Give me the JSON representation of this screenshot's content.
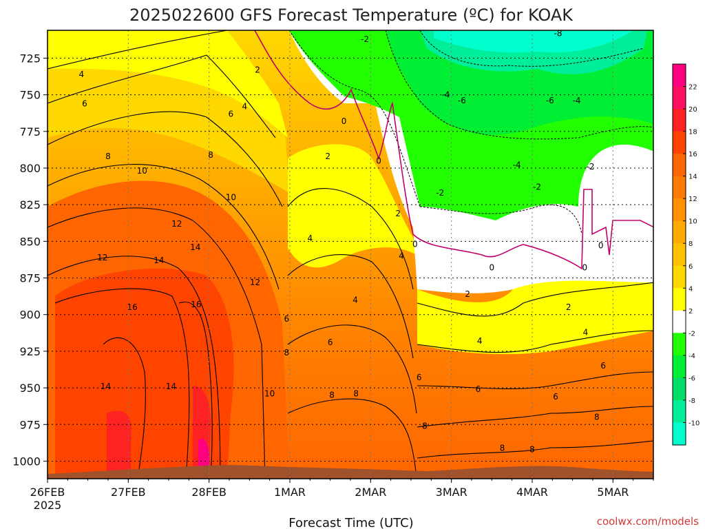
{
  "chart_data": {
    "type": "heatmap",
    "title": "2025022600 GFS Forecast Temperature (ºC) for KOAK",
    "xlabel": "Forecast Time (UTC)",
    "credit": "coolwx.com/models",
    "y_axis": {
      "label": "",
      "reversed": true,
      "ticks": [
        725,
        750,
        775,
        800,
        825,
        850,
        875,
        900,
        925,
        950,
        975,
        1000
      ],
      "tick_labels": [
        "725",
        "750",
        "775",
        "800",
        "825",
        "850",
        "875",
        "900",
        "925",
        "950",
        "975",
        "1000"
      ],
      "range": [
        706,
        1012
      ]
    },
    "x_axis": {
      "ticks": [
        "26FEB",
        "27FEB",
        "28FEB",
        "1MAR",
        "2MAR",
        "3MAR",
        "4MAR",
        "5MAR"
      ],
      "year_label": "2025",
      "range_days": [
        0,
        7.5
      ]
    },
    "grid": true,
    "colorbar": {
      "tick_labels": [
        "22",
        "20",
        "18",
        "16",
        "14",
        "12",
        "10",
        "8",
        "6",
        "4",
        "2",
        "-2",
        "-4",
        "-6",
        "-8",
        "-10"
      ],
      "colors": [
        "#ff0080",
        "#ff1060",
        "#ff2222",
        "#ff4400",
        "#ff6600",
        "#ff7a00",
        "#ff9000",
        "#ffaa00",
        "#ffc000",
        "#ffd800",
        "#ffff00",
        "#ffffff",
        "#22ff00",
        "#00ee33",
        "#00dd66",
        "#00ee99",
        "#00ffcc"
      ]
    },
    "contour_labels": [
      {
        "t": "4",
        "day": 0.42,
        "p": 736
      },
      {
        "t": "6",
        "day": 0.46,
        "p": 756
      },
      {
        "t": "8",
        "day": 0.75,
        "p": 792
      },
      {
        "t": "10",
        "day": 1.17,
        "p": 802
      },
      {
        "t": "12",
        "day": 0.68,
        "p": 861
      },
      {
        "t": "14",
        "day": 1.38,
        "p": 863
      },
      {
        "t": "16",
        "day": 1.05,
        "p": 895
      },
      {
        "t": "14",
        "day": 0.72,
        "p": 949
      },
      {
        "t": "12",
        "day": 1.6,
        "p": 838
      },
      {
        "t": "14",
        "day": 1.83,
        "p": 854
      },
      {
        "t": "16",
        "day": 1.84,
        "p": 893
      },
      {
        "t": "14",
        "day": 1.53,
        "p": 949
      },
      {
        "t": "10",
        "day": 2.27,
        "p": 820
      },
      {
        "t": "12",
        "day": 2.57,
        "p": 878
      },
      {
        "t": "8",
        "day": 2.02,
        "p": 791
      },
      {
        "t": "6",
        "day": 2.27,
        "p": 763
      },
      {
        "t": "4",
        "day": 2.44,
        "p": 758
      },
      {
        "t": "2",
        "day": 2.6,
        "p": 733
      },
      {
        "t": "6",
        "day": 2.96,
        "p": 903
      },
      {
        "t": "8",
        "day": 2.96,
        "p": 926
      },
      {
        "t": "10",
        "day": 2.75,
        "p": 954
      },
      {
        "t": "4",
        "day": 3.25,
        "p": 848
      },
      {
        "t": "6",
        "day": 3.5,
        "p": 919
      },
      {
        "t": "8",
        "day": 3.52,
        "p": 955
      },
      {
        "t": "8",
        "day": 3.82,
        "p": 954
      },
      {
        "t": "4",
        "day": 3.81,
        "p": 890
      },
      {
        "t": "2",
        "day": 3.47,
        "p": 792
      },
      {
        "t": "0",
        "day": 3.67,
        "p": 768
      },
      {
        "t": "0",
        "day": 4.1,
        "p": 795
      },
      {
        "t": "-2",
        "day": 3.93,
        "p": 712
      },
      {
        "t": "2",
        "day": 4.34,
        "p": 831
      },
      {
        "t": "4",
        "day": 4.38,
        "p": 860
      },
      {
        "t": "0",
        "day": 4.55,
        "p": 852
      },
      {
        "t": "6",
        "day": 4.6,
        "p": 943
      },
      {
        "t": "8",
        "day": 4.67,
        "p": 976
      },
      {
        "t": "-4",
        "day": 4.93,
        "p": 750
      },
      {
        "t": "-2",
        "day": 4.86,
        "p": 817
      },
      {
        "t": "2",
        "day": 5.2,
        "p": 886
      },
      {
        "t": "4",
        "day": 5.35,
        "p": 918
      },
      {
        "t": "6",
        "day": 5.33,
        "p": 951
      },
      {
        "t": "8",
        "day": 5.63,
        "p": 991
      },
      {
        "t": "0",
        "day": 5.5,
        "p": 868
      },
      {
        "t": "-6",
        "day": 5.13,
        "p": 754
      },
      {
        "t": "-4",
        "day": 5.81,
        "p": 798
      },
      {
        "t": "-6",
        "day": 6.22,
        "p": 754
      },
      {
        "t": "-2",
        "day": 6.06,
        "p": 813
      },
      {
        "t": "-2",
        "day": 6.72,
        "p": 799
      },
      {
        "t": "2",
        "day": 6.45,
        "p": 895
      },
      {
        "t": "4",
        "day": 6.66,
        "p": 912
      },
      {
        "t": "6",
        "day": 6.29,
        "p": 956
      },
      {
        "t": "8",
        "day": 6.0,
        "p": 992
      },
      {
        "t": "0",
        "day": 6.65,
        "p": 868
      },
      {
        "t": "-8",
        "day": 6.32,
        "p": 708
      },
      {
        "t": "-4",
        "day": 6.55,
        "p": 754
      },
      {
        "t": "0",
        "day": 6.85,
        "p": 853
      },
      {
        "t": "6",
        "day": 6.88,
        "p": 935
      },
      {
        "t": "8",
        "day": 6.8,
        "p": 970
      }
    ]
  }
}
